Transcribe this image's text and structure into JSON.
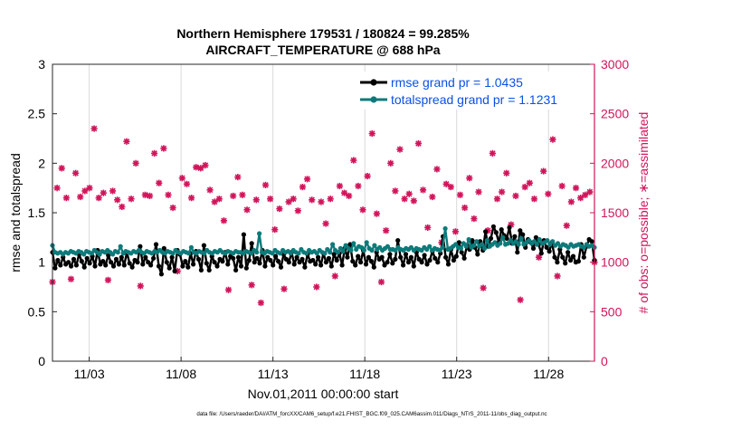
{
  "chart_data": {
    "type": "line",
    "title_line1": "Northern Hemisphere 179531 / 180824 = 99.285%",
    "title_line2": "AIRCRAFT_TEMPERATURE @ 688 hPa",
    "xlabel": "Nov.01,2011 00:00:00 start",
    "ylabel_left": "rmse and totalspread",
    "ylabel_right": "# of obs: o=possible; ∗=assimilated",
    "footer": "data file: /Users/raeder/DAI/ATM_forcXX/CAM6_setup/f.e21.FHIST_BGC.f09_025.CAM6assim.011/Diags_NTrS_2011-11/obs_diag_output.nc",
    "xlim": [
      1,
      30.5
    ],
    "ylim_left": [
      0,
      3
    ],
    "ylim_right": [
      0,
      3000
    ],
    "x_ticks": [
      3,
      8,
      13,
      18,
      23,
      28
    ],
    "x_tick_labels": [
      "11/03",
      "11/08",
      "11/13",
      "11/18",
      "11/23",
      "11/28"
    ],
    "y_left_ticks": [
      0,
      0.5,
      1,
      1.5,
      2,
      2.5,
      3
    ],
    "y_left_tick_labels": [
      "0",
      "0.5",
      "1",
      "1.5",
      "2",
      "2.5",
      "3"
    ],
    "y_right_ticks": [
      0,
      500,
      1000,
      1500,
      2000,
      2500,
      3000
    ],
    "y_right_tick_labels": [
      "0",
      "500",
      "1000",
      "1500",
      "2000",
      "2500",
      "3000"
    ],
    "colors": {
      "rmse": "#000000",
      "spread": "#0d7a7a",
      "obs": "#d2145a",
      "axis": "#262626",
      "legend_text": "#0a50e6",
      "grid": "#d9d9d9"
    },
    "series": [
      {
        "name": "rmse grand pr = 1.0435",
        "values": [
          1.1,
          0.94,
          1.02,
          0.97,
          1.05,
          0.98,
          1.0,
          0.96,
          1.03,
          0.97,
          1.08,
          1.01,
          0.95,
          1.04,
          0.99,
          1.06,
          0.96,
          1.12,
          0.98,
          1.01,
          0.97,
          1.07,
          1.0,
          0.96,
          1.03,
          0.98,
          1.05,
          0.97,
          1.1,
          0.99,
          0.95,
          1.02,
          1.0,
          1.16,
          0.98,
          1.05,
          1.0,
          0.97,
          1.04,
          1.18,
          0.96,
          0.88,
          1.14,
          1.0,
          0.94,
          1.05,
          0.91,
          1.12,
          1.08,
          0.96,
          1.01,
          0.95,
          1.09,
          0.98,
          1.11,
          1.03,
          0.92,
          1.17,
          0.99,
          0.92,
          1.06,
          1.0,
          0.96,
          1.03,
          1.01,
          1.1,
          0.98,
          1.06,
          1.04,
          0.92,
          1.05,
          0.96,
          1.28,
          0.94,
          1.02,
          1.19,
          1.0,
          1.04,
          0.99,
          1.12,
          0.96,
          1.05,
          1.02,
          0.97,
          1.06,
          1.01,
          0.95,
          1.08,
          1.03,
          1.0,
          1.1,
          0.98,
          1.05,
          1.0,
          1.03,
          0.95,
          1.08,
          1.01,
          1.02,
          0.98,
          1.05,
          0.97,
          1.09,
          1.0,
          1.04,
          0.96,
          1.08,
          1.02,
          1.09,
          0.97,
          1.14,
          1.05,
          1.18,
          1.01,
          0.97,
          1.06,
          1.0,
          1.12,
          0.98,
          1.05,
          1.01,
          0.95,
          1.1,
          1.03,
          1.05,
          0.97,
          1.0,
          1.08,
          0.99,
          1.03,
          1.22,
          1.05,
          0.97,
          1.08,
          1.0,
          1.05,
          0.96,
          1.1,
          1.03,
          1.0,
          1.07,
          0.98,
          1.02,
          1.11,
          1.04,
          1.0,
          1.09,
          1.26,
          1.05,
          0.98,
          1.13,
          1.02,
          1.06,
          1.2,
          1.1,
          1.04,
          1.17,
          1.13,
          1.22,
          1.15,
          1.08,
          1.21,
          1.12,
          1.31,
          1.16,
          1.24,
          1.36,
          1.3,
          1.2,
          1.33,
          1.27,
          1.24,
          1.35,
          1.19,
          1.26,
          1.1,
          1.32,
          1.28,
          1.15,
          1.23,
          1.2,
          1.14,
          1.25,
          1.18,
          1.09,
          1.22,
          1.15,
          1.11,
          1.2,
          1.05,
          1.0,
          1.13,
          1.05,
          0.99,
          1.1,
          1.02,
          1.06,
          1.0,
          1.01,
          1.18,
          1.05,
          1.16,
          1.23,
          1.21,
          1.02
        ]
      },
      {
        "name": "totalspread grand pr = 1.1231",
        "values": [
          1.17,
          1.1,
          1.09,
          1.1,
          1.08,
          1.1,
          1.09,
          1.11,
          1.1,
          1.09,
          1.11,
          1.1,
          1.08,
          1.11,
          1.1,
          1.09,
          1.12,
          1.1,
          1.08,
          1.11,
          1.1,
          1.12,
          1.1,
          1.08,
          1.11,
          1.1,
          1.16,
          1.09,
          1.11,
          1.1,
          1.09,
          1.11,
          1.1,
          1.12,
          1.1,
          1.09,
          1.11,
          1.1,
          1.09,
          1.11,
          1.1,
          1.12,
          1.1,
          1.09,
          1.11,
          1.1,
          1.09,
          1.12,
          1.1,
          1.09,
          1.11,
          1.1,
          1.09,
          1.15,
          1.1,
          1.09,
          1.11,
          1.1,
          1.09,
          1.12,
          1.1,
          1.09,
          1.11,
          1.1,
          1.12,
          1.1,
          1.09,
          1.11,
          1.1,
          1.09,
          1.11,
          1.1,
          1.1,
          1.09,
          1.11,
          1.1,
          1.09,
          1.12,
          1.1,
          1.29,
          1.1,
          1.09,
          1.11,
          1.1,
          1.09,
          1.12,
          1.1,
          1.09,
          1.12,
          1.1,
          1.11,
          1.09,
          1.12,
          1.1,
          1.09,
          1.13,
          1.1,
          1.09,
          1.12,
          1.1,
          1.11,
          1.09,
          1.12,
          1.1,
          1.09,
          1.13,
          1.1,
          1.18,
          1.12,
          1.1,
          1.14,
          1.11,
          1.17,
          1.14,
          1.12,
          1.19,
          1.13,
          1.16,
          1.15,
          1.12,
          1.2,
          1.14,
          1.12,
          1.17,
          1.13,
          1.15,
          1.12,
          1.14,
          1.16,
          1.13,
          1.13,
          1.12,
          1.15,
          1.13,
          1.12,
          1.14,
          1.13,
          1.15,
          1.12,
          1.14,
          1.13,
          1.12,
          1.15,
          1.13,
          1.16,
          1.12,
          1.14,
          1.13,
          1.12,
          1.15,
          1.34,
          1.13,
          1.14,
          1.16,
          1.18,
          1.15,
          1.14,
          1.19,
          1.16,
          1.23,
          1.15,
          1.17,
          1.21,
          1.16,
          1.18,
          1.14,
          1.22,
          1.16,
          1.18,
          1.2,
          1.17,
          1.19,
          1.25,
          1.18,
          1.19,
          1.22,
          1.19,
          1.21,
          1.18,
          1.24,
          1.18,
          1.2,
          1.22,
          1.19,
          1.21,
          1.18,
          1.23,
          1.19,
          1.2,
          1.22,
          1.18,
          1.21,
          1.17,
          1.19,
          1.16,
          1.18,
          1.17,
          1.15,
          1.18,
          1.16,
          1.17,
          1.18,
          1.16,
          1.15,
          1.18,
          1.16,
          1.17,
          1.15
        ]
      }
    ],
    "obs_counts": [
      800,
      1750,
      1950,
      1650,
      830,
      1900,
      1660,
      1720,
      1750,
      2350,
      1650,
      1700,
      820,
      1720,
      1630,
      1560,
      2220,
      1640,
      2000,
      760,
      1680,
      1670,
      2100,
      1800,
      2150,
      1680,
      1550,
      910,
      1850,
      1790,
      1650,
      1960,
      1950,
      1980,
      1730,
      1610,
      1640,
      1420,
      720,
      1670,
      1860,
      1680,
      1530,
      770,
      1630,
      590,
      1780,
      1640,
      1330,
      1540,
      730,
      1610,
      1640,
      1520,
      1760,
      1840,
      1630,
      750,
      1610,
      1390,
      1640,
      860,
      1770,
      1700,
      1670,
      2030,
      1770,
      1530,
      1870,
      2300,
      1490,
      800,
      1320,
      2000,
      1720,
      2140,
      1640,
      1690,
      1620,
      2200,
      1730,
      1350,
      1660,
      1940,
      1200,
      1790,
      1760,
      1310,
      1680,
      1550,
      1850,
      1440,
      1710,
      740,
      1320,
      2100,
      1640,
      1710,
      1900,
      1380,
      1670,
      620,
      1760,
      1800,
      1640,
      1050,
      1920,
      1690,
      2240,
      860,
      1770,
      1370,
      1610,
      1750,
      1650,
      1680,
      1710,
      1000
    ]
  }
}
